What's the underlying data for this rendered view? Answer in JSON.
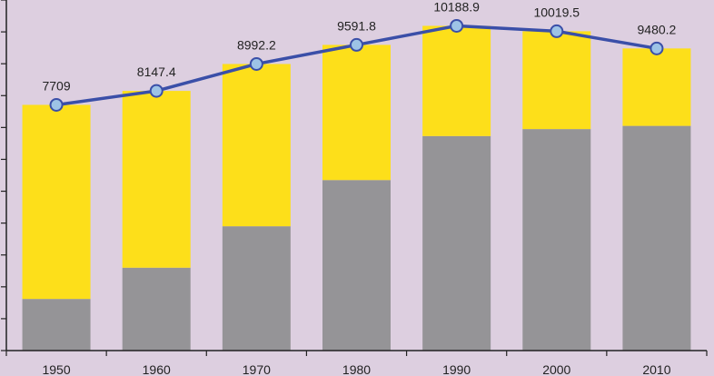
{
  "colors": {
    "background": "#ddcfe0",
    "bar_lower": "#959497",
    "bar_upper": "#fddf1a",
    "line": "#3a4fa8",
    "marker_fill": "#9dc3e6",
    "axis": "#222222"
  },
  "chart_data": {
    "type": "bar",
    "stacked": true,
    "categories": [
      "1950",
      "1960",
      "1970",
      "1980",
      "1990",
      "2000",
      "2010"
    ],
    "series": [
      {
        "values": [
          1620,
          2600,
          3900,
          5350,
          6730,
          6950,
          7050
        ]
      },
      {
        "values": [
          6090,
          5547.4,
          5092.2,
          4241.8,
          3458.9,
          3069.5,
          2430.2
        ]
      }
    ],
    "line_series": {
      "values": [
        7709,
        8147.4,
        8992.2,
        9591.8,
        10188.9,
        10019.5,
        9480.2
      ],
      "labels": [
        "7709",
        "8147.4",
        "8992.2",
        "9591.8",
        "10188.9",
        "10019.5",
        "9480.2"
      ]
    },
    "ylim": [
      0,
      11000
    ],
    "y_tick_step": 1000,
    "y_tick_labels_shown": false,
    "grid": false,
    "legend": "none",
    "xlabel": "",
    "ylabel": "",
    "title": ""
  }
}
